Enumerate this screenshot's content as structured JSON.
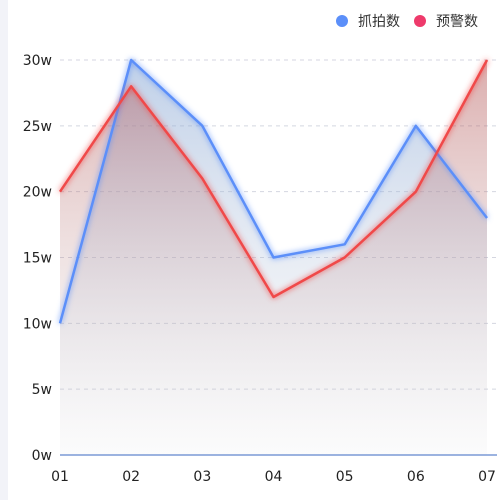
{
  "chart_data": {
    "type": "area",
    "categories": [
      "01",
      "02",
      "03",
      "04",
      "05",
      "06",
      "07"
    ],
    "series": [
      {
        "name": "抓拍数",
        "values": [
          10,
          30,
          25,
          15,
          16,
          25,
          18
        ],
        "color": "#5b8ff9"
      },
      {
        "name": "预警数",
        "values": [
          20,
          28,
          21,
          12,
          15,
          20,
          30
        ],
        "color": "#f04848"
      }
    ],
    "ylim": [
      0,
      30
    ],
    "yticks": [
      0,
      5,
      10,
      15,
      20,
      25,
      30
    ],
    "ytick_labels": [
      "0w",
      "5w",
      "10w",
      "15w",
      "20w",
      "25w",
      "30w"
    ],
    "grid": true,
    "legend_position": "top-right",
    "legend_dot_colors": [
      "#5b8ff9",
      "#ee3a6b"
    ]
  }
}
